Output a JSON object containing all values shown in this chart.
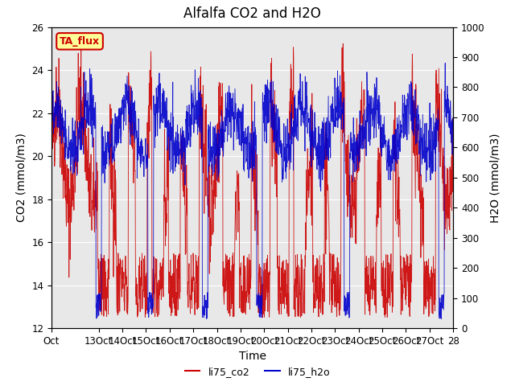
{
  "title": "Alfalfa CO2 and H2O",
  "xlabel": "Time",
  "ylabel_left": "CO2 (mmol/m3)",
  "ylabel_right": "H2O (mmol/m3)",
  "ylim_left": [
    12,
    26
  ],
  "ylim_right": [
    0,
    1000
  ],
  "yticks_left": [
    12,
    14,
    16,
    18,
    20,
    22,
    24,
    26
  ],
  "yticks_right": [
    0,
    100,
    200,
    300,
    400,
    500,
    600,
    700,
    800,
    900,
    1000
  ],
  "x_tick_positions": [
    0,
    2,
    3,
    4,
    5,
    6,
    7,
    8,
    9,
    10,
    11,
    12,
    13,
    14,
    15,
    16,
    17
  ],
  "x_tick_labels": [
    "Oct",
    "13Oct",
    "14Oct",
    "15Oct",
    "16Oct",
    "17Oct",
    "18Oct",
    "19Oct",
    "20Oct",
    "21Oct",
    "22Oct",
    "23Oct",
    "24Oct",
    "25Oct",
    "26Oct",
    "27Oct",
    "28"
  ],
  "color_co2": "#cc0000",
  "color_h2o": "#0000cc",
  "legend_label_co2": "li75_co2",
  "legend_label_h2o": "li75_h2o",
  "annotation_text": "TA_flux",
  "annotation_color": "#cc0000",
  "annotation_bg": "#ffff99",
  "background_color": "#ffffff",
  "plot_bg_color": "#e8e8e8",
  "grid_color": "#ffffff",
  "title_fontsize": 12,
  "axis_fontsize": 10,
  "tick_fontsize": 8.5
}
